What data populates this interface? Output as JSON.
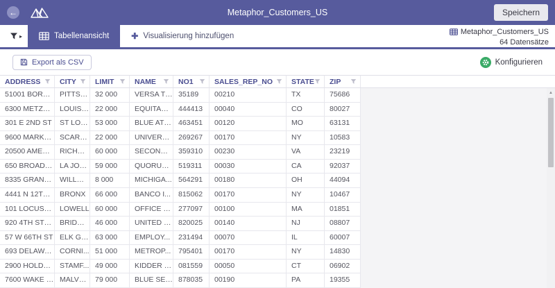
{
  "topbar": {
    "title": "Metaphor_Customers_US",
    "save_label": "Speichern"
  },
  "tabs": {
    "table_view": "Tabellenansicht",
    "add_visualization": "Visualisierung hinzufügen"
  },
  "dataset": {
    "name": "Metaphor_Customers_US",
    "count": "64 Datensätze"
  },
  "toolbar": {
    "export_label": "Export als CSV",
    "configure_label": "Konfigurieren"
  },
  "table": {
    "columns": [
      "ADDRESS",
      "CITY",
      "LIMIT",
      "NAME",
      "NO1",
      "SALES_REP_NO",
      "STATE",
      "ZIP"
    ],
    "rows": [
      [
        "51001 BORNE...",
        "PITTSB...",
        "32 000",
        "VERSA TI...",
        "35189",
        "00210",
        "TX",
        "75686"
      ],
      [
        "6300 METZER...",
        "LOUISVI...",
        "22 000",
        "EQUITABL...",
        "444413",
        "00040",
        "CO",
        "80027"
      ],
      [
        "301 E 2ND ST",
        "ST LOUIS",
        "53 000",
        "BLUE ATL...",
        "463451",
        "00120",
        "MO",
        "63131"
      ],
      [
        "9600 MARKET ...",
        "SCARSD...",
        "22 000",
        "UNIVERSI...",
        "269267",
        "00170",
        "NY",
        "10583"
      ],
      [
        "20500 AMERI...",
        "RICHM...",
        "60 000",
        "SECOND ...",
        "359310",
        "00230",
        "VA",
        "23219"
      ],
      [
        "650 BROADW...",
        "LA JOLLA",
        "59 000",
        "QUORUM ...",
        "519311",
        "00030",
        "CA",
        "92037"
      ],
      [
        "8335 GRANDV...",
        "WILLOU...",
        "8 000",
        "MICHIGA...",
        "564291",
        "00180",
        "OH",
        "44094"
      ],
      [
        "4441 N 12TH ST",
        "BRONX",
        "66 000",
        "BANCO I...",
        "815062",
        "00170",
        "NY",
        "10467"
      ],
      [
        "101 LOCUST A...",
        "LOWELL",
        "60 000",
        "OFFICE C...",
        "277097",
        "00100",
        "MA",
        "01851"
      ],
      [
        "920 4TH STREET",
        "BRIDGE...",
        "46 000",
        "UNITED C...",
        "820025",
        "00140",
        "NJ",
        "08807"
      ],
      [
        "57 W 66TH ST",
        "ELK GR...",
        "63 000",
        "EMPLOY...",
        "231494",
        "00070",
        "IL",
        "60007"
      ],
      [
        "693 DELAWAR...",
        "CORNI...",
        "51 000",
        "METROP...",
        "795401",
        "00170",
        "NY",
        "14830"
      ],
      [
        "2900 HOLDRE...",
        "STAMF...",
        "49 000",
        "KIDDER E...",
        "081559",
        "00050",
        "CT",
        "06902"
      ],
      [
        "7600 WAKE F...",
        "MALVE...",
        "79 000",
        "BLUE SER...",
        "878035",
        "00190",
        "PA",
        "19355"
      ]
    ]
  },
  "colors": {
    "accent": "#575b9d",
    "configure_green": "#3aab67",
    "header_text": "#4b4e91"
  }
}
